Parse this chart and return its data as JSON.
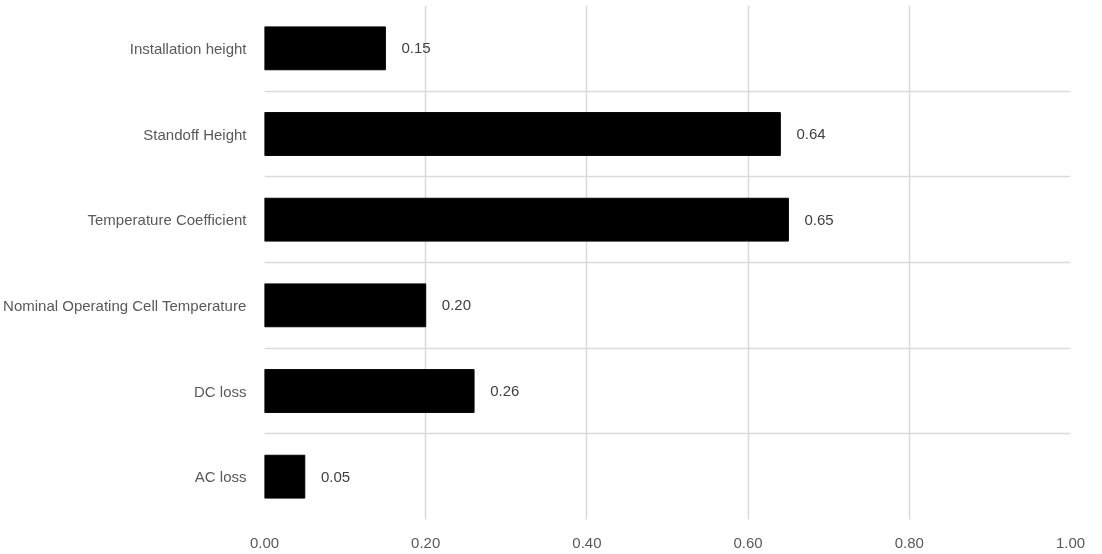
{
  "chart_data": {
    "type": "bar",
    "orientation": "horizontal",
    "categories": [
      "Installation height",
      "Standoff Height",
      "Temperature Coefficient",
      "Nominal Operating Cell Temperature",
      "DC loss",
      "AC loss"
    ],
    "values": [
      0.15,
      0.64,
      0.65,
      0.2,
      0.26,
      0.05
    ],
    "value_labels": [
      "0.15",
      "0.64",
      "0.65",
      "0.20",
      "0.26",
      "0.05"
    ],
    "color": "#000000",
    "xlim": [
      0,
      1
    ],
    "xticks": [
      {
        "value": 0,
        "label": "0.00"
      },
      {
        "value": 0.2,
        "label": "0.20"
      },
      {
        "value": 0.4,
        "label": "0.40"
      },
      {
        "value": 0.6,
        "label": "0.60"
      },
      {
        "value": 0.8,
        "label": "0.80"
      },
      {
        "value": 1,
        "label": "1.00"
      }
    ],
    "grid": true
  }
}
